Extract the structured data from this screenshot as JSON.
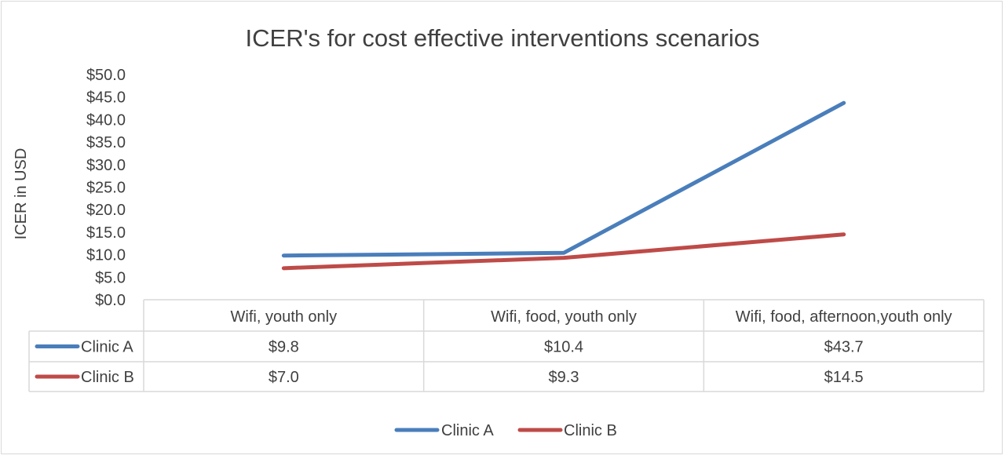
{
  "chart_data": {
    "type": "line",
    "title": "ICER's for cost effective interventions scenarios",
    "xlabel": "",
    "ylabel": "ICER in USD",
    "ylim": [
      0,
      50
    ],
    "yticks": [
      "$0.0",
      "$5.0",
      "$10.0",
      "$15.0",
      "$20.0",
      "$25.0",
      "$30.0",
      "$35.0",
      "$40.0",
      "$45.0",
      "$50.0"
    ],
    "grid": false,
    "legend": "bottom",
    "categories": [
      "Wifi, youth only",
      "Wifi, food, youth only",
      "Wifi, food, afternoon,youth only"
    ],
    "series": [
      {
        "name": "Clinic A",
        "color": "#4a7ebb",
        "values": [
          9.8,
          10.4,
          43.7
        ],
        "labels": [
          "$9.8",
          "$10.4",
          "$43.7"
        ]
      },
      {
        "name": "Clinic B",
        "color": "#be4b48",
        "values": [
          7.0,
          9.3,
          14.5
        ],
        "labels": [
          "$7.0",
          "$9.3",
          "$14.5"
        ]
      }
    ]
  }
}
